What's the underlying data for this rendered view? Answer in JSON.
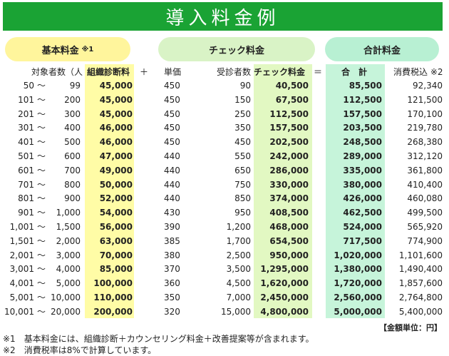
{
  "title": "導入料金例",
  "pills": {
    "base": "基本料金",
    "base_note": "※1",
    "check": "チェック料金",
    "total": "合計料金"
  },
  "headers": {
    "target": "対象者数（人",
    "base": "組織診断料",
    "plus": "＋",
    "unit": "単価",
    "count": "受診者数",
    "check": "チェック料金",
    "equals": "＝",
    "total": "合　計",
    "tax": "消費税込 ※2"
  },
  "rows": [
    {
      "from": "50",
      "tilde": "〜",
      "to": "99",
      "base": "45,000",
      "unit": "450",
      "count": "90",
      "check": "40,500",
      "total": "85,500",
      "tax": "92,340"
    },
    {
      "from": "101",
      "tilde": "〜",
      "to": "200",
      "base": "45,000",
      "unit": "450",
      "count": "150",
      "check": "67,500",
      "total": "112,500",
      "tax": "121,500"
    },
    {
      "from": "201",
      "tilde": "〜",
      "to": "300",
      "base": "45,000",
      "unit": "450",
      "count": "250",
      "check": "112,500",
      "total": "157,500",
      "tax": "170,100"
    },
    {
      "from": "301",
      "tilde": "〜",
      "to": "400",
      "base": "46,000",
      "unit": "450",
      "count": "350",
      "check": "157,500",
      "total": "203,500",
      "tax": "219,780"
    },
    {
      "from": "401",
      "tilde": "〜",
      "to": "500",
      "base": "46,000",
      "unit": "450",
      "count": "450",
      "check": "202,500",
      "total": "248,500",
      "tax": "268,380"
    },
    {
      "from": "501",
      "tilde": "〜",
      "to": "600",
      "base": "47,000",
      "unit": "440",
      "count": "550",
      "check": "242,000",
      "total": "289,000",
      "tax": "312,120"
    },
    {
      "from": "601",
      "tilde": "〜",
      "to": "700",
      "base": "49,000",
      "unit": "440",
      "count": "650",
      "check": "286,000",
      "total": "335,000",
      "tax": "361,800"
    },
    {
      "from": "701",
      "tilde": "〜",
      "to": "800",
      "base": "50,000",
      "unit": "440",
      "count": "750",
      "check": "330,000",
      "total": "380,000",
      "tax": "410,400"
    },
    {
      "from": "801",
      "tilde": "〜",
      "to": "900",
      "base": "52,000",
      "unit": "440",
      "count": "850",
      "check": "374,000",
      "total": "426,000",
      "tax": "460,080"
    },
    {
      "from": "901",
      "tilde": "〜",
      "to": "1,000",
      "base": "54,000",
      "unit": "430",
      "count": "950",
      "check": "408,500",
      "total": "462,500",
      "tax": "499,500"
    },
    {
      "from": "1,001",
      "tilde": "〜",
      "to": "1,500",
      "base": "56,000",
      "unit": "390",
      "count": "1,200",
      "check": "468,000",
      "total": "524,000",
      "tax": "565,920"
    },
    {
      "from": "1,501",
      "tilde": "〜",
      "to": "2,000",
      "base": "63,000",
      "unit": "385",
      "count": "1,700",
      "check": "654,500",
      "total": "717,500",
      "tax": "774,900"
    },
    {
      "from": "2,001",
      "tilde": "〜",
      "to": "3,000",
      "base": "70,000",
      "unit": "380",
      "count": "2,500",
      "check": "950,000",
      "total": "1,020,000",
      "tax": "1,101,600"
    },
    {
      "from": "3,001",
      "tilde": "〜",
      "to": "4,000",
      "base": "85,000",
      "unit": "370",
      "count": "3,500",
      "check": "1,295,000",
      "total": "1,380,000",
      "tax": "1,490,400"
    },
    {
      "from": "4,001",
      "tilde": "〜",
      "to": "5,000",
      "base": "100,000",
      "unit": "360",
      "count": "4,500",
      "check": "1,620,000",
      "total": "1,720,000",
      "tax": "1,857,600"
    },
    {
      "from": "5,001",
      "tilde": "〜",
      "to": "10,000",
      "base": "110,000",
      "unit": "350",
      "count": "7,000",
      "check": "2,450,000",
      "total": "2,560,000",
      "tax": "2,764,800"
    },
    {
      "from": "10,001",
      "tilde": "〜",
      "to": "20,000",
      "base": "200,000",
      "unit": "320",
      "count": "15,000",
      "check": "4,800,000",
      "total": "5,000,000",
      "tax": "5,400,000"
    }
  ],
  "unit_label": "【金額単位：円】",
  "notes": [
    "※1　基本料金には、組織診断＋カウンセリング料金＋改善提案等が含まれます。",
    "※2　消費税率は8%で計算しています。"
  ],
  "colors": {
    "banner": "#1aa334",
    "base_highlight": "#fffca6",
    "check_highlight": "#e2f8c2",
    "total_highlight": "#c6f4da"
  }
}
